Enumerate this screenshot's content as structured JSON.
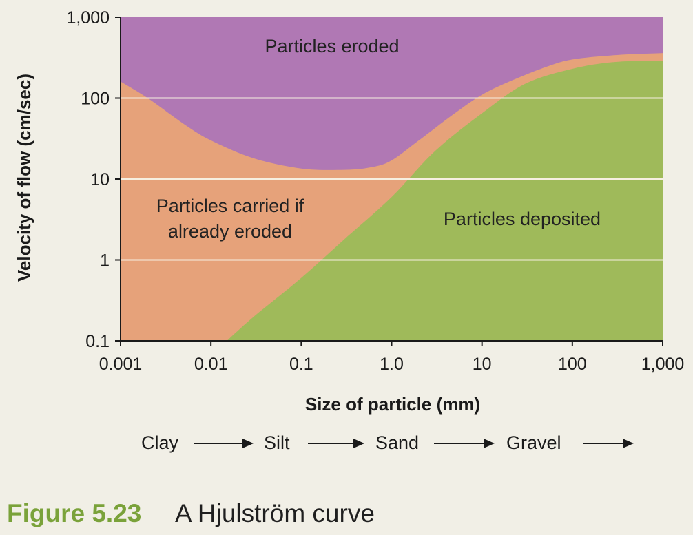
{
  "chart_data": {
    "type": "area",
    "xlabel": "Size of particle (mm)",
    "ylabel": "Velocity of flow (cm/sec)",
    "x_scale": "log",
    "y_scale": "log",
    "xlim": [
      0.001,
      1000
    ],
    "ylim": [
      0.1,
      1000
    ],
    "x_ticks": [
      {
        "value": 0.001,
        "label": "0.001"
      },
      {
        "value": 0.01,
        "label": "0.01"
      },
      {
        "value": 0.1,
        "label": "0.1"
      },
      {
        "value": 1,
        "label": "1.0"
      },
      {
        "value": 10,
        "label": "10"
      },
      {
        "value": 100,
        "label": "100"
      },
      {
        "value": 1000,
        "label": "1,000"
      }
    ],
    "y_ticks": [
      {
        "value": 0.1,
        "label": "0.1"
      },
      {
        "value": 1,
        "label": "1"
      },
      {
        "value": 10,
        "label": "10"
      },
      {
        "value": 100,
        "label": "100"
      },
      {
        "value": 1000,
        "label": "1,000"
      }
    ],
    "gridlines_y": [
      1,
      10,
      100
    ],
    "erosion_curve": {
      "x": [
        0.001,
        0.002,
        0.005,
        0.01,
        0.03,
        0.1,
        0.3,
        0.6,
        1,
        2,
        5,
        10,
        20,
        50,
        100,
        300,
        1000
      ],
      "y": [
        160,
        100,
        48,
        30,
        18,
        13.5,
        13,
        14,
        17,
        30,
        65,
        110,
        160,
        240,
        300,
        340,
        360
      ]
    },
    "deposition_curve": {
      "x": [
        0.015,
        0.03,
        0.1,
        0.3,
        1,
        3,
        10,
        30,
        100,
        300,
        1000
      ],
      "y": [
        0.1,
        0.2,
        0.6,
        1.8,
        6,
        22,
        65,
        150,
        230,
        280,
        290
      ]
    },
    "regions": {
      "eroded": {
        "label": "Particles eroded",
        "color": "#b078b4"
      },
      "carried": {
        "label_lines": [
          "Particles carried if",
          "already eroded"
        ],
        "color": "#e6a27a"
      },
      "deposited": {
        "label": "Particles deposited",
        "color": "#9fba5a"
      }
    },
    "gridline_color": "#f6efe0"
  },
  "size_classes": [
    "Clay",
    "Silt",
    "Sand",
    "Gravel"
  ],
  "caption": {
    "number": "Figure 5.23",
    "text": "A Hjulström curve",
    "number_color": "#7aa23a"
  }
}
